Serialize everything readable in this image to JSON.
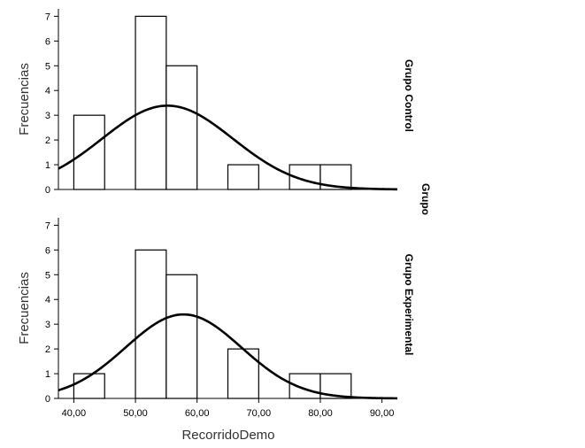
{
  "chart_data": {
    "type": "histogram",
    "xlabel": "RecorridoDemo",
    "ylabel": "Frecuencias",
    "panel_group_label": "Grupo",
    "xlim": [
      37.5,
      92.5
    ],
    "ylim": [
      0,
      7.3
    ],
    "x_ticks": [
      40,
      50,
      60,
      70,
      80,
      90
    ],
    "x_tick_labels": [
      "40,00",
      "50,00",
      "60,00",
      "70,00",
      "80,00",
      "90,00"
    ],
    "y_ticks": [
      0,
      1,
      2,
      3,
      4,
      5,
      6,
      7
    ],
    "bin_width": 5,
    "grid": false,
    "legend": "none",
    "panels": [
      {
        "label": "Grupo Control",
        "bins": [
          {
            "start": 40,
            "end": 45,
            "count": 3
          },
          {
            "start": 45,
            "end": 50,
            "count": 0
          },
          {
            "start": 50,
            "end": 55,
            "count": 7
          },
          {
            "start": 55,
            "end": 60,
            "count": 5
          },
          {
            "start": 60,
            "end": 65,
            "count": 0
          },
          {
            "start": 65,
            "end": 70,
            "count": 1
          },
          {
            "start": 70,
            "end": 75,
            "count": 0
          },
          {
            "start": 75,
            "end": 80,
            "count": 1
          },
          {
            "start": 80,
            "end": 85,
            "count": 1
          }
        ],
        "normal_curve": {
          "mean": 55.2,
          "sd": 10.6,
          "n": 18
        }
      },
      {
        "label": "Grupo Experimental",
        "bins": [
          {
            "start": 40,
            "end": 45,
            "count": 1
          },
          {
            "start": 45,
            "end": 50,
            "count": 0
          },
          {
            "start": 50,
            "end": 55,
            "count": 6
          },
          {
            "start": 55,
            "end": 60,
            "count": 5
          },
          {
            "start": 60,
            "end": 65,
            "count": 0
          },
          {
            "start": 65,
            "end": 70,
            "count": 2
          },
          {
            "start": 70,
            "end": 75,
            "count": 0
          },
          {
            "start": 75,
            "end": 80,
            "count": 1
          },
          {
            "start": 80,
            "end": 85,
            "count": 1
          }
        ],
        "normal_curve": {
          "mean": 57.8,
          "sd": 9.4,
          "n": 16
        }
      }
    ]
  }
}
